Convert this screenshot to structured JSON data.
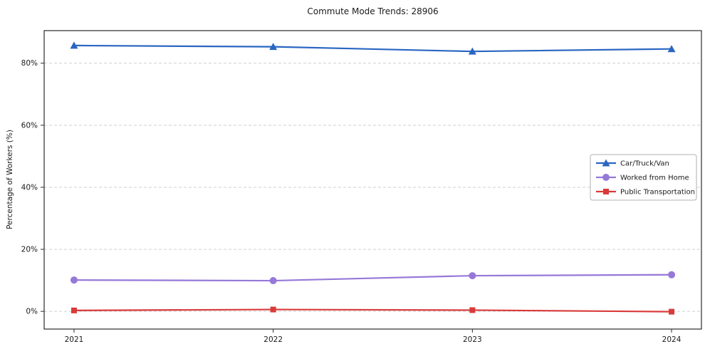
{
  "chart_data": {
    "type": "line",
    "title": "Commute Mode Trends: 28906",
    "xlabel": "",
    "ylabel": "Percentage of Workers (%)",
    "x": [
      2021,
      2022,
      2023,
      2024
    ],
    "x_tick_labels": [
      "2021",
      "2022",
      "2023",
      "2024"
    ],
    "y_ticks": [
      0,
      20,
      40,
      60,
      80
    ],
    "y_tick_labels": [
      "0%",
      "20%",
      "40%",
      "60%",
      "80%"
    ],
    "xlim": [
      2020.85,
      2024.15
    ],
    "ylim": [
      -5.7,
      90.5
    ],
    "grid": "horizontal-dashed",
    "grid_color": "#cfcfcf",
    "axis_color": "#2b2b2b",
    "legend_position": "center-right",
    "series": [
      {
        "name": "Car/Truck/Van",
        "color": "#2a66c2",
        "marker": "triangle",
        "values": [
          85.7,
          85.3,
          83.8,
          84.6
        ]
      },
      {
        "name": "Worked from Home",
        "color": "#9678d8",
        "marker": "circle",
        "values": [
          10.1,
          9.9,
          11.5,
          11.8
        ]
      },
      {
        "name": "Public Transportation",
        "color": "#d93a3a",
        "marker": "square",
        "values": [
          0.3,
          0.6,
          0.4,
          -0.1
        ]
      }
    ]
  }
}
